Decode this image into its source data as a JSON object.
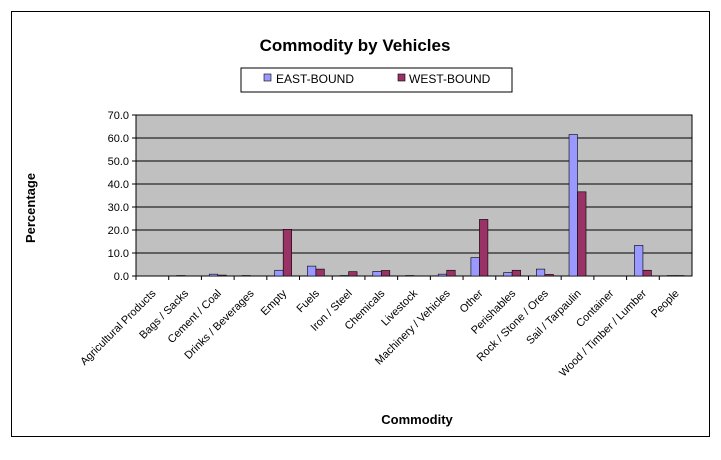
{
  "chart_data": {
    "type": "bar",
    "title": "Commodity by Vehicles",
    "xlabel": "Commodity",
    "ylabel": "Percentage",
    "ylim": [
      0,
      70
    ],
    "yticks": [
      "0.0",
      "10.0",
      "20.0",
      "30.0",
      "40.0",
      "50.0",
      "60.0",
      "70.0"
    ],
    "grid": true,
    "legend_position": "top",
    "categories": [
      "Agricultural Products",
      "Bags / Sacks",
      "Cement / Coal",
      "Drinks / Beverages",
      "Empty",
      "Fuels",
      "Iron / Steel",
      "Chemicals",
      "Livestock",
      "Machinery / Vehicles",
      "Other",
      "Perishables",
      "Rock / Stone / Ores",
      "Sail / Tarpaulin",
      "Container",
      "Wood / Timber / Lumber",
      "People"
    ],
    "series": [
      {
        "name": "EAST-BOUND",
        "color": "#9999ff",
        "values": [
          0.0,
          0.2,
          0.8,
          0.2,
          2.5,
          4.3,
          0.2,
          2.0,
          0.2,
          0.8,
          8.0,
          1.5,
          3.0,
          61.5,
          0.0,
          13.3,
          0.2
        ]
      },
      {
        "name": "WEST-BOUND",
        "color": "#993366",
        "values": [
          0.0,
          0.0,
          0.4,
          0.0,
          20.3,
          3.0,
          1.9,
          2.4,
          0.0,
          2.5,
          24.6,
          2.5,
          0.7,
          36.6,
          0.0,
          2.5,
          0.2
        ]
      }
    ],
    "plot_background": "#c0c0c0"
  }
}
